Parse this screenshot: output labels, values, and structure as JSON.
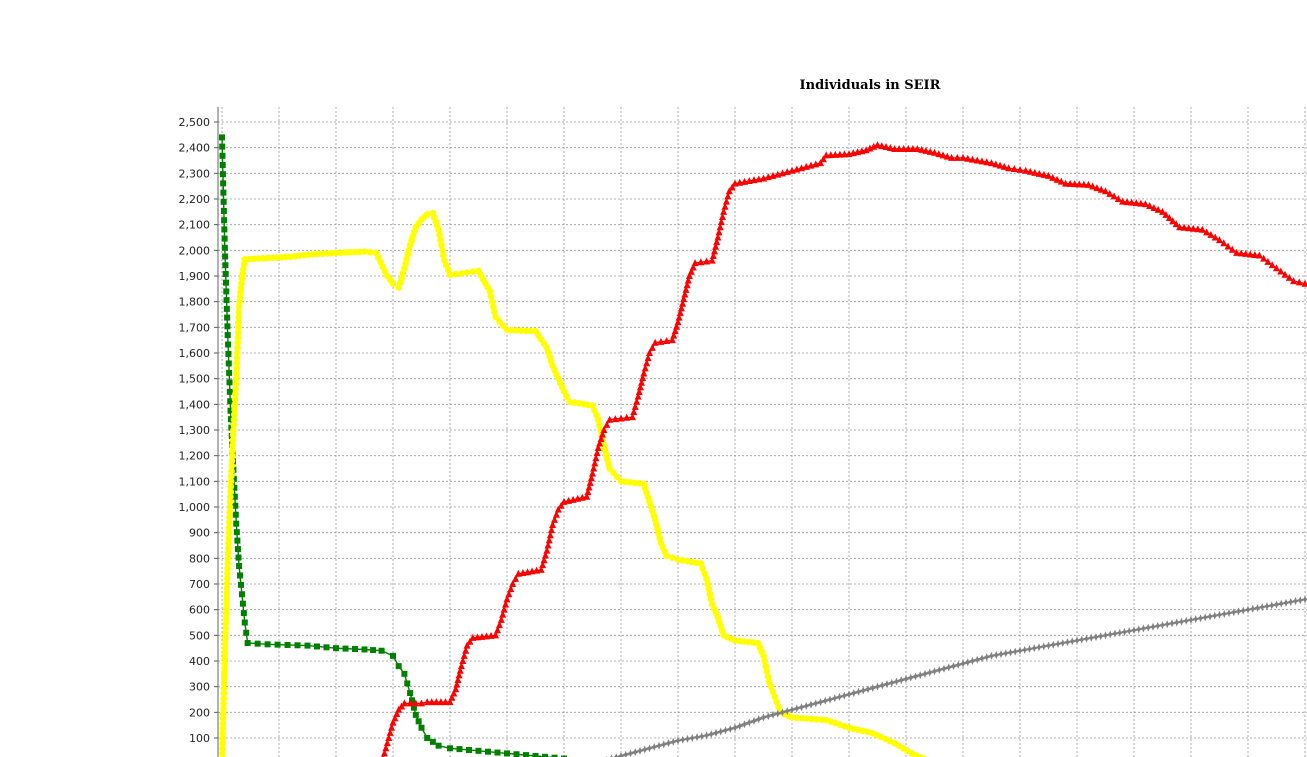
{
  "chart_data": {
    "type": "line",
    "title": "Individuals in SEIR",
    "xlabel": "",
    "ylabel": "",
    "ylim": [
      0,
      2500
    ],
    "xlim": [
      0,
      190
    ],
    "x_grid_step": 10,
    "yticks": [
      100,
      200,
      300,
      400,
      500,
      600,
      700,
      800,
      900,
      1000,
      1100,
      1200,
      1300,
      1400,
      1500,
      1600,
      1700,
      1800,
      1900,
      2000,
      2100,
      2200,
      2300,
      2400,
      2500
    ],
    "ytick_labels": [
      "100",
      "200",
      "300",
      "400",
      "500",
      "600",
      "700",
      "800",
      "900",
      "1,000",
      "1,100",
      "1,200",
      "1,300",
      "1,400",
      "1,500",
      "1,600",
      "1,700",
      "1,800",
      "1,900",
      "2,000",
      "2,100",
      "2,200",
      "2,300",
      "2,400",
      "2,500"
    ],
    "grid": true,
    "legend": "none",
    "series": [
      {
        "color": "#008000",
        "marker": "square",
        "points": [
          [
            0,
            2440
          ],
          [
            0.5,
            2010
          ],
          [
            1,
            1670
          ],
          [
            1.5,
            1375
          ],
          [
            2,
            1145
          ],
          [
            2.5,
            935
          ],
          [
            3,
            770
          ],
          [
            3.5,
            660
          ],
          [
            4,
            550
          ],
          [
            4.5,
            470
          ],
          [
            8,
            465
          ],
          [
            15,
            460
          ],
          [
            20,
            450
          ],
          [
            25,
            445
          ],
          [
            28,
            440
          ],
          [
            30,
            420
          ],
          [
            31,
            380
          ],
          [
            32,
            350
          ],
          [
            33,
            275
          ],
          [
            34,
            190
          ],
          [
            35,
            140
          ],
          [
            36,
            100
          ],
          [
            38,
            70
          ],
          [
            40,
            60
          ],
          [
            45,
            50
          ],
          [
            50,
            40
          ],
          [
            55,
            30
          ],
          [
            60,
            20
          ]
        ]
      },
      {
        "color": "#ffff00",
        "marker": "circle",
        "points": [
          [
            0,
            0
          ],
          [
            0.5,
            430
          ],
          [
            1,
            780
          ],
          [
            1.5,
            1060
          ],
          [
            2,
            1300
          ],
          [
            2.5,
            1500
          ],
          [
            3,
            1780
          ],
          [
            3.5,
            1890
          ],
          [
            4,
            1965
          ],
          [
            8,
            1970
          ],
          [
            12,
            1975
          ],
          [
            16,
            1985
          ],
          [
            20,
            1990
          ],
          [
            25,
            1995
          ],
          [
            27,
            1990
          ],
          [
            29,
            1900
          ],
          [
            30,
            1870
          ],
          [
            31,
            1855
          ],
          [
            32,
            1930
          ],
          [
            33,
            2020
          ],
          [
            34,
            2090
          ],
          [
            35,
            2120
          ],
          [
            36,
            2140
          ],
          [
            37,
            2145
          ],
          [
            38,
            2080
          ],
          [
            39,
            1960
          ],
          [
            40,
            1905
          ],
          [
            42,
            1910
          ],
          [
            45,
            1920
          ],
          [
            47,
            1840
          ],
          [
            48,
            1740
          ],
          [
            50,
            1690
          ],
          [
            55,
            1685
          ],
          [
            57,
            1620
          ],
          [
            58,
            1550
          ],
          [
            60,
            1450
          ],
          [
            61,
            1410
          ],
          [
            65,
            1395
          ],
          [
            66,
            1340
          ],
          [
            67,
            1240
          ],
          [
            68,
            1150
          ],
          [
            70,
            1100
          ],
          [
            74,
            1090
          ],
          [
            75,
            1020
          ],
          [
            76,
            950
          ],
          [
            77,
            860
          ],
          [
            78,
            810
          ],
          [
            80,
            795
          ],
          [
            84,
            780
          ],
          [
            85,
            720
          ],
          [
            86,
            620
          ],
          [
            87,
            570
          ],
          [
            88,
            500
          ],
          [
            90,
            480
          ],
          [
            94,
            470
          ],
          [
            95,
            420
          ],
          [
            96,
            320
          ],
          [
            97,
            260
          ],
          [
            98,
            200
          ],
          [
            100,
            180
          ],
          [
            106,
            170
          ],
          [
            110,
            140
          ],
          [
            114,
            120
          ],
          [
            118,
            80
          ],
          [
            121,
            40
          ],
          [
            124,
            10
          ],
          [
            125,
            0
          ]
        ]
      },
      {
        "color": "#ff0000",
        "marker": "triangle",
        "points": [
          [
            28,
            0
          ],
          [
            29,
            80
          ],
          [
            30,
            160
          ],
          [
            31,
            210
          ],
          [
            32,
            235
          ],
          [
            35,
            235
          ],
          [
            36,
            240
          ],
          [
            40,
            240
          ],
          [
            41,
            290
          ],
          [
            42,
            380
          ],
          [
            43,
            460
          ],
          [
            44,
            490
          ],
          [
            48,
            500
          ],
          [
            49,
            560
          ],
          [
            50,
            640
          ],
          [
            51,
            700
          ],
          [
            52,
            740
          ],
          [
            56,
            755
          ],
          [
            57,
            830
          ],
          [
            58,
            930
          ],
          [
            59,
            990
          ],
          [
            60,
            1020
          ],
          [
            64,
            1040
          ],
          [
            65,
            1130
          ],
          [
            66,
            1230
          ],
          [
            67,
            1300
          ],
          [
            68,
            1340
          ],
          [
            70,
            1345
          ],
          [
            72,
            1350
          ],
          [
            73,
            1430
          ],
          [
            74,
            1520
          ],
          [
            75,
            1600
          ],
          [
            76,
            1640
          ],
          [
            79,
            1650
          ],
          [
            80,
            1720
          ],
          [
            81,
            1810
          ],
          [
            82,
            1900
          ],
          [
            83,
            1950
          ],
          [
            86,
            1960
          ],
          [
            87,
            2050
          ],
          [
            88,
            2150
          ],
          [
            89,
            2230
          ],
          [
            90,
            2260
          ],
          [
            95,
            2280
          ],
          [
            100,
            2310
          ],
          [
            105,
            2340
          ],
          [
            106,
            2370
          ],
          [
            110,
            2375
          ],
          [
            113,
            2390
          ],
          [
            115,
            2410
          ],
          [
            118,
            2395
          ],
          [
            122,
            2395
          ],
          [
            125,
            2380
          ],
          [
            128,
            2360
          ],
          [
            130,
            2360
          ],
          [
            135,
            2340
          ],
          [
            138,
            2320
          ],
          [
            141,
            2310
          ],
          [
            145,
            2290
          ],
          [
            148,
            2260
          ],
          [
            152,
            2255
          ],
          [
            155,
            2230
          ],
          [
            158,
            2190
          ],
          [
            162,
            2180
          ],
          [
            165,
            2150
          ],
          [
            168,
            2090
          ],
          [
            172,
            2080
          ],
          [
            175,
            2040
          ],
          [
            178,
            1990
          ],
          [
            182,
            1980
          ],
          [
            185,
            1930
          ],
          [
            188,
            1880
          ],
          [
            190,
            1870
          ]
        ]
      },
      {
        "color": "#808080",
        "marker": "star",
        "points": [
          [
            65,
            0
          ],
          [
            70,
            30
          ],
          [
            75,
            60
          ],
          [
            80,
            90
          ],
          [
            85,
            110
          ],
          [
            90,
            140
          ],
          [
            95,
            180
          ],
          [
            100,
            210
          ],
          [
            105,
            240
          ],
          [
            110,
            270
          ],
          [
            115,
            300
          ],
          [
            120,
            330
          ],
          [
            125,
            360
          ],
          [
            130,
            390
          ],
          [
            135,
            420
          ],
          [
            140,
            440
          ],
          [
            145,
            460
          ],
          [
            150,
            480
          ],
          [
            155,
            500
          ],
          [
            160,
            520
          ],
          [
            165,
            540
          ],
          [
            170,
            560
          ],
          [
            175,
            580
          ],
          [
            180,
            600
          ],
          [
            185,
            620
          ],
          [
            190,
            640
          ]
        ]
      }
    ]
  }
}
